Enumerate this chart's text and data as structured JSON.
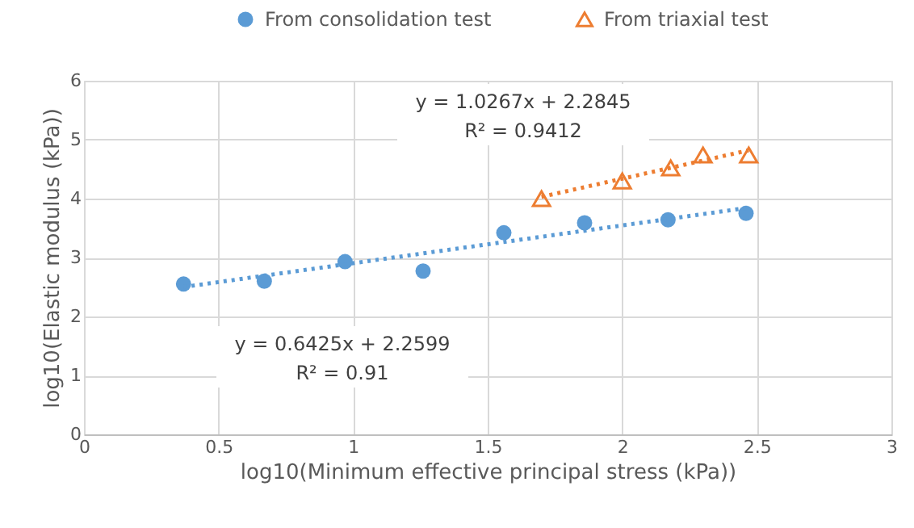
{
  "chart_data": {
    "type": "scatter",
    "xlabel": "log10(Minimum effective principal stress (kPa))",
    "ylabel": "log10(Elastic modulus (kPa))",
    "xlim": [
      0,
      3
    ],
    "xticks": [
      0,
      0.5,
      1,
      1.5,
      2,
      2.5,
      3
    ],
    "ylim": [
      0,
      6
    ],
    "yticks": [
      0,
      1,
      2,
      3,
      4,
      5,
      6
    ],
    "grid": true,
    "legend": "top",
    "series": [
      {
        "name": "From consolidation test",
        "color": "#5b9bd5",
        "marker": "circle",
        "x": [
          0.37,
          0.67,
          0.97,
          1.26,
          1.56,
          1.86,
          2.17,
          2.46
        ],
        "values": [
          2.55,
          2.6,
          2.93,
          2.77,
          3.42,
          3.59,
          3.64,
          3.75
        ]
      },
      {
        "name": "From triaxial test",
        "color": "#ed7d31",
        "marker": "triangle",
        "x": [
          1.7,
          2.0,
          2.18,
          2.3,
          2.47
        ],
        "values": [
          4.0,
          4.3,
          4.52,
          4.74,
          4.74
        ]
      },
      {
        "type": "line",
        "color": "#5b9bd5",
        "line_style": "dotted",
        "marker": "none",
        "x": [
          0.37,
          2.46
        ],
        "values": [
          2.5,
          3.84
        ]
      },
      {
        "type": "line",
        "color": "#ed7d31",
        "line_style": "dotted",
        "marker": "none",
        "x": [
          1.7,
          2.47
        ],
        "values": [
          4.03,
          4.82
        ]
      }
    ],
    "annotations": [
      "y = 1.0267x + 2.2845\nR² = 0.9412",
      "y = 0.6425x + 2.2599\nR² = 0.91"
    ]
  }
}
